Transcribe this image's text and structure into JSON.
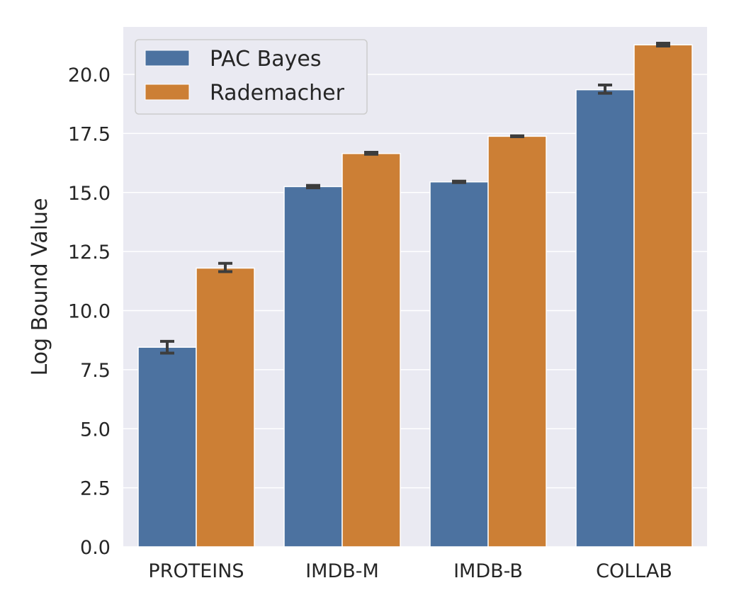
{
  "chart_data": {
    "type": "bar",
    "title": "",
    "xlabel": "",
    "ylabel": "Log Bound Value",
    "categories": [
      "PROTEINS",
      "IMDB-M",
      "IMDB-B",
      "COLLAB"
    ],
    "series": [
      {
        "name": "PAC Bayes",
        "color": "#4c72a0",
        "values": [
          8.45,
          15.25,
          15.45,
          19.35
        ],
        "error_low": [
          8.2,
          15.2,
          15.42,
          19.2
        ],
        "error_high": [
          8.7,
          15.3,
          15.48,
          19.55
        ]
      },
      {
        "name": "Rademacher",
        "color": "#cc7f35",
        "values": [
          11.8,
          16.65,
          17.38,
          21.25
        ],
        "error_low": [
          11.65,
          16.62,
          17.36,
          21.2
        ],
        "error_high": [
          12.0,
          16.7,
          17.4,
          21.32
        ]
      }
    ],
    "yticks": [
      "0.0",
      "2.5",
      "5.0",
      "7.5",
      "10.0",
      "12.5",
      "15.0",
      "17.5",
      "20.0"
    ],
    "ylim": [
      0,
      22
    ],
    "grid": true,
    "legend_position": "top-left"
  }
}
